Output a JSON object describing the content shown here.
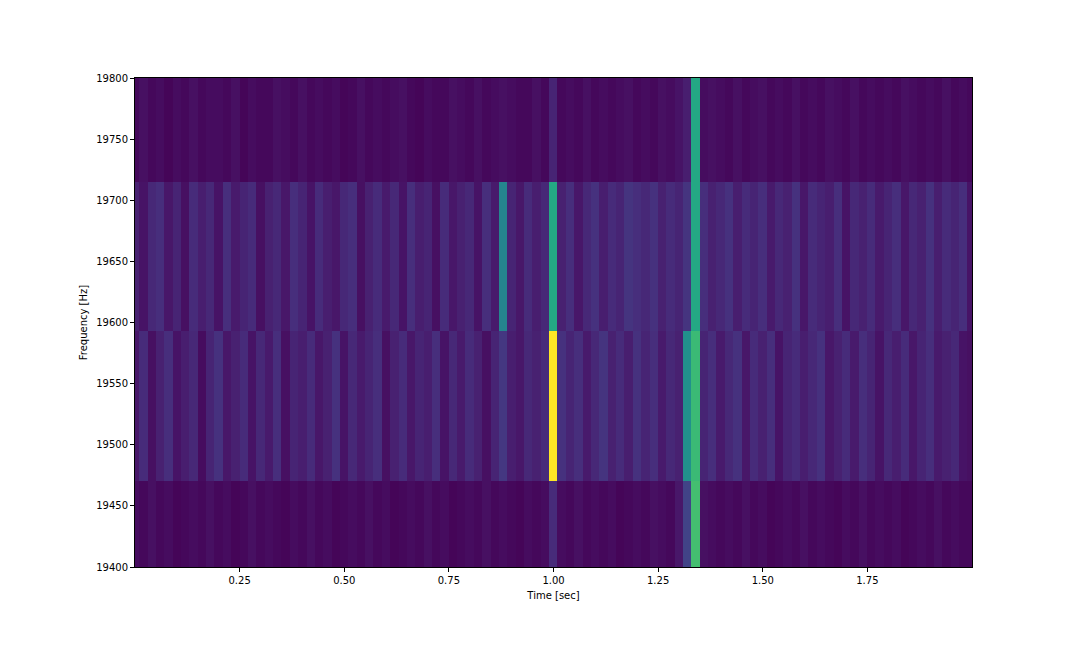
{
  "chart_data": {
    "type": "heatmap",
    "x_label": "Time [sec]",
    "y_label": "Frequency [Hz]",
    "xlim": [
      0,
      2
    ],
    "ylim": [
      19400,
      19800
    ],
    "xticks": [
      0.25,
      {
        "value": 0.5,
        "label": "0.50"
      },
      0.75,
      {
        "value": 1,
        "label": "1.00"
      },
      1.25,
      {
        "value": 1.5,
        "label": "1.50"
      },
      1.75
    ],
    "yticks": [
      19400,
      19450,
      19500,
      19550,
      19600,
      19650,
      19700,
      19750,
      19800
    ],
    "zlim": [
      0,
      1
    ],
    "x": [
      0.0,
      0.02,
      0.04,
      0.06,
      0.08,
      0.1,
      0.12,
      0.14,
      0.16,
      0.18,
      0.2,
      0.22,
      0.24,
      0.26,
      0.28,
      0.3,
      0.32,
      0.34,
      0.36,
      0.38,
      0.4,
      0.42,
      0.44,
      0.46,
      0.48,
      0.5,
      0.52,
      0.54,
      0.56,
      0.58,
      0.6,
      0.62,
      0.64,
      0.66,
      0.68,
      0.7,
      0.72,
      0.74,
      0.76,
      0.78,
      0.8,
      0.82,
      0.84,
      0.86,
      0.88,
      0.9,
      0.92,
      0.94,
      0.96,
      0.98,
      1.0,
      1.02,
      1.04,
      1.06,
      1.08,
      1.1,
      1.12,
      1.14,
      1.16,
      1.18,
      1.2,
      1.22,
      1.24,
      1.26,
      1.28,
      1.3,
      1.32,
      1.34,
      1.36,
      1.38,
      1.4,
      1.42,
      1.44,
      1.46,
      1.48,
      1.5,
      1.52,
      1.54,
      1.56,
      1.58,
      1.6,
      1.62,
      1.64,
      1.66,
      1.68,
      1.7,
      1.72,
      1.74,
      1.76,
      1.78,
      1.8,
      1.82,
      1.84,
      1.86,
      1.88,
      1.9,
      1.92,
      1.94,
      1.96,
      1.98,
      2.0
    ],
    "y": [
      19409,
      19531,
      19653,
      19776
    ],
    "cells": [
      [
        0.03,
        0.02,
        0.04,
        0.02,
        0.03,
        0.01,
        0.02,
        0.03,
        0.02,
        0.04,
        0.02,
        0.03,
        0.01,
        0.02,
        0.04,
        0.02,
        0.03,
        0.02,
        0.01,
        0.03,
        0.02,
        0.04,
        0.02,
        0.03,
        0.01,
        0.02,
        0.03,
        0.02,
        0.04,
        0.02,
        0.03,
        0.01,
        0.02,
        0.03,
        0.02,
        0.04,
        0.02,
        0.03,
        0.01,
        0.02,
        0.03,
        0.02,
        0.04,
        0.02,
        0.03,
        0.02,
        0.01,
        0.03,
        0.02,
        0.03,
        0.12,
        0.03,
        0.02,
        0.04,
        0.02,
        0.03,
        0.02,
        0.03,
        0.01,
        0.02,
        0.03,
        0.02,
        0.04,
        0.03,
        0.02,
        0.06,
        0.2,
        0.7,
        0.04,
        0.03,
        0.02,
        0.03,
        0.02,
        0.04,
        0.02,
        0.03,
        0.01,
        0.02,
        0.03,
        0.02,
        0.04,
        0.02,
        0.03,
        0.02,
        0.01,
        0.03,
        0.02,
        0.04,
        0.02,
        0.03,
        0.02,
        0.03,
        0.01,
        0.02,
        0.03,
        0.02,
        0.04,
        0.02,
        0.03,
        0.02,
        0.02
      ],
      [
        0.06,
        0.12,
        0.04,
        0.09,
        0.13,
        0.05,
        0.08,
        0.11,
        0.03,
        0.1,
        0.14,
        0.06,
        0.09,
        0.12,
        0.05,
        0.11,
        0.07,
        0.13,
        0.04,
        0.1,
        0.08,
        0.12,
        0.06,
        0.09,
        0.14,
        0.05,
        0.11,
        0.07,
        0.1,
        0.13,
        0.04,
        0.09,
        0.12,
        0.06,
        0.1,
        0.08,
        0.13,
        0.05,
        0.11,
        0.07,
        0.12,
        0.09,
        0.04,
        0.1,
        0.16,
        0.08,
        0.06,
        0.11,
        0.09,
        0.12,
        1.0,
        0.14,
        0.1,
        0.13,
        0.07,
        0.11,
        0.15,
        0.09,
        0.12,
        0.08,
        0.14,
        0.1,
        0.13,
        0.07,
        0.11,
        0.09,
        0.5,
        0.68,
        0.1,
        0.13,
        0.07,
        0.11,
        0.14,
        0.06,
        0.12,
        0.09,
        0.13,
        0.05,
        0.1,
        0.12,
        0.08,
        0.11,
        0.14,
        0.06,
        0.09,
        0.12,
        0.07,
        0.13,
        0.1,
        0.05,
        0.11,
        0.08,
        0.12,
        0.06,
        0.1,
        0.13,
        0.07,
        0.09,
        0.11,
        0.05,
        0.04
      ],
      [
        0.09,
        0.05,
        0.11,
        0.13,
        0.06,
        0.1,
        0.04,
        0.12,
        0.08,
        0.11,
        0.05,
        0.13,
        0.07,
        0.1,
        0.12,
        0.04,
        0.09,
        0.11,
        0.06,
        0.13,
        0.1,
        0.05,
        0.12,
        0.08,
        0.06,
        0.11,
        0.13,
        0.04,
        0.09,
        0.12,
        0.07,
        0.11,
        0.05,
        0.13,
        0.08,
        0.1,
        0.04,
        0.12,
        0.06,
        0.09,
        0.11,
        0.05,
        0.13,
        0.07,
        0.45,
        0.1,
        0.06,
        0.12,
        0.08,
        0.11,
        0.6,
        0.09,
        0.13,
        0.06,
        0.11,
        0.14,
        0.08,
        0.12,
        0.1,
        0.15,
        0.13,
        0.11,
        0.14,
        0.09,
        0.12,
        0.1,
        0.15,
        0.6,
        0.13,
        0.09,
        0.11,
        0.14,
        0.08,
        0.12,
        0.1,
        0.13,
        0.07,
        0.11,
        0.09,
        0.14,
        0.06,
        0.12,
        0.1,
        0.08,
        0.13,
        0.05,
        0.11,
        0.09,
        0.12,
        0.07,
        0.1,
        0.13,
        0.06,
        0.11,
        0.09,
        0.14,
        0.08,
        0.12,
        0.1,
        0.13,
        0.05
      ],
      [
        0.02,
        0.04,
        0.02,
        0.03,
        0.01,
        0.03,
        0.02,
        0.04,
        0.02,
        0.03,
        0.03,
        0.02,
        0.04,
        0.01,
        0.03,
        0.02,
        0.02,
        0.04,
        0.03,
        0.02,
        0.04,
        0.02,
        0.03,
        0.02,
        0.03,
        0.01,
        0.02,
        0.04,
        0.02,
        0.03,
        0.02,
        0.03,
        0.04,
        0.02,
        0.01,
        0.03,
        0.02,
        0.02,
        0.04,
        0.03,
        0.02,
        0.04,
        0.02,
        0.03,
        0.04,
        0.03,
        0.02,
        0.02,
        0.04,
        0.02,
        0.1,
        0.02,
        0.03,
        0.02,
        0.04,
        0.02,
        0.03,
        0.02,
        0.03,
        0.04,
        0.02,
        0.03,
        0.02,
        0.04,
        0.03,
        0.05,
        0.08,
        0.6,
        0.03,
        0.04,
        0.03,
        0.02,
        0.04,
        0.02,
        0.03,
        0.04,
        0.02,
        0.03,
        0.02,
        0.04,
        0.02,
        0.03,
        0.02,
        0.04,
        0.03,
        0.02,
        0.04,
        0.02,
        0.03,
        0.02,
        0.03,
        0.02,
        0.04,
        0.03,
        0.02,
        0.03,
        0.02,
        0.04,
        0.02,
        0.03,
        0.02
      ]
    ]
  }
}
